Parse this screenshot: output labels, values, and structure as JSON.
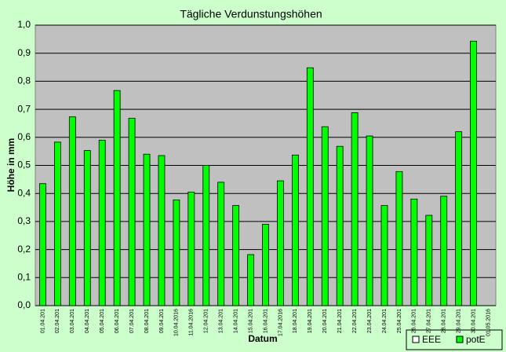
{
  "chart_data": {
    "type": "bar",
    "title": "Tägliche Verdunstungshöhen",
    "y_label": "Höhe in mm",
    "x_label": "Datum",
    "categories": [
      "01.04.201",
      "02.04.201",
      "03.04.201",
      "04.04.201",
      "05.04.201",
      "06.04.201",
      "07.04.201",
      "08.04.201",
      "09.04.201",
      "10.04.2016",
      "11.04.2016",
      "12.04.201",
      "13.04.201",
      "14.04.201",
      "15.04.201",
      "16.04.201",
      "17.04.2016",
      "18.04.201",
      "19.04.201",
      "20.04.201",
      "21.04.201",
      "22.04.201",
      "23.04.201",
      "24.04.201",
      "25.04.201",
      "26.04.201",
      "27.04.201",
      "28.04.201",
      "29.04.201",
      "30.04.201",
      "01.05.2016"
    ],
    "series": [
      {
        "name": "EEE",
        "color": "#ffffff",
        "values": [
          null,
          null,
          null,
          null,
          null,
          null,
          null,
          null,
          null,
          null,
          null,
          null,
          null,
          null,
          null,
          null,
          null,
          null,
          null,
          null,
          null,
          null,
          null,
          null,
          null,
          null,
          null,
          null,
          null,
          null,
          null
        ]
      },
      {
        "name": "potE",
        "color": "#00ff00",
        "values": [
          0.435,
          0.583,
          0.673,
          0.553,
          0.59,
          0.767,
          0.668,
          0.54,
          0.535,
          0.377,
          0.405,
          0.5,
          0.44,
          0.357,
          0.182,
          0.29,
          0.445,
          0.537,
          0.848,
          0.638,
          0.568,
          0.688,
          0.605,
          0.357,
          0.478,
          0.38,
          0.322,
          0.39,
          0.62,
          0.943,
          null
        ]
      }
    ],
    "ylim": [
      0,
      1
    ],
    "yticks": [
      {
        "value": 0,
        "label": "0,0"
      },
      {
        "value": 0.1,
        "label": "0,1"
      },
      {
        "value": 0.2,
        "label": "0,2"
      },
      {
        "value": 0.3,
        "label": "0,3"
      },
      {
        "value": 0.4,
        "label": "0,4"
      },
      {
        "value": 0.5,
        "label": "0,5"
      },
      {
        "value": 0.6,
        "label": "0,6"
      },
      {
        "value": 0.7,
        "label": "0,7"
      },
      {
        "value": 0.8,
        "label": "0,8"
      },
      {
        "value": 0.9,
        "label": "0,9"
      },
      {
        "value": 1,
        "label": "1,0"
      }
    ],
    "grid": true,
    "legend": "bottom-right"
  }
}
